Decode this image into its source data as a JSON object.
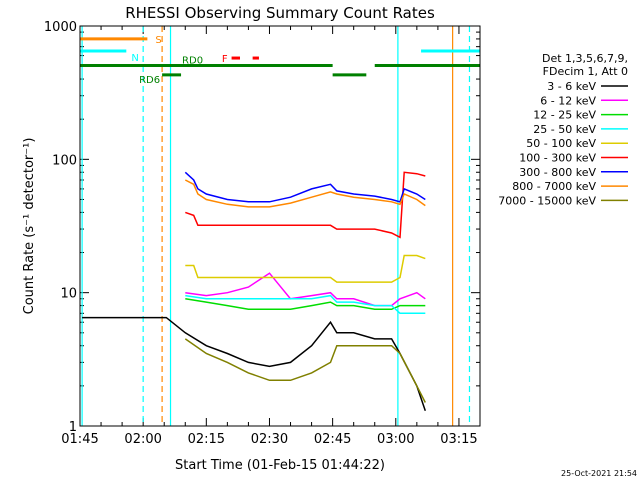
{
  "chart_data": {
    "type": "line",
    "title": "RHESSI Observing Summary Count Rates",
    "xlabel": "Start Time (01-Feb-15 01:44:22)",
    "ylabel": "Count Rate (s⁻¹ detector⁻¹)",
    "y_scale": "log",
    "ylim": [
      1,
      1000
    ],
    "xlim": [
      105,
      200
    ],
    "x_unit": "minutes after 00:00 UT, 01-Feb-15",
    "x_ticks": [
      {
        "value": 105,
        "label": "01:45"
      },
      {
        "value": 120,
        "label": "02:00"
      },
      {
        "value": 135,
        "label": "02:15"
      },
      {
        "value": 150,
        "label": "02:30"
      },
      {
        "value": 165,
        "label": "02:45"
      },
      {
        "value": 180,
        "label": "03:00"
      },
      {
        "value": 195,
        "label": "03:15"
      }
    ],
    "y_ticks": [
      {
        "value": 1,
        "label": "1"
      },
      {
        "value": 10,
        "label": "10"
      },
      {
        "value": 100,
        "label": "100"
      },
      {
        "value": 1000,
        "label": "1000"
      }
    ],
    "legend_header": [
      "Det 1,3,5,6,7,9,",
      "FDecim 1, Att 0"
    ],
    "legend_position": "right",
    "timestamp": "25-Oct-2021 21:54",
    "series": [
      {
        "name": "3 - 6 keV",
        "color": "#000000",
        "x": [
          105.5,
          107.5,
          108.5,
          112.5,
          115,
          118,
          122,
          125.5,
          130,
          135,
          140,
          145,
          150,
          155,
          160,
          164.5,
          166,
          170,
          175,
          179,
          181,
          185,
          187
        ],
        "y": [
          6.5,
          6.5,
          6.5,
          6.5,
          6.5,
          6.5,
          6.5,
          6.5,
          5,
          4,
          3.5,
          3,
          2.8,
          3,
          4,
          6,
          5,
          5,
          4.5,
          4.5,
          3.5,
          2,
          1.3
        ]
      },
      {
        "name": "6 - 12 keV",
        "color": "#ff00ff",
        "x": [
          130,
          135,
          140,
          145,
          150,
          155,
          160,
          164.5,
          166,
          170,
          175,
          179,
          181,
          185,
          187
        ],
        "y": [
          10,
          9.5,
          10,
          11,
          14,
          9,
          9.5,
          10,
          9,
          9,
          8,
          8,
          9,
          10,
          9
        ]
      },
      {
        "name": "12 - 25 keV",
        "color": "#00dd00",
        "x": [
          130,
          135,
          140,
          145,
          150,
          155,
          160,
          164.5,
          166,
          170,
          175,
          179,
          181,
          185,
          187
        ],
        "y": [
          9,
          8.5,
          8,
          7.5,
          7.5,
          7.5,
          8,
          8.5,
          8,
          8,
          7.5,
          7.5,
          8,
          8,
          8
        ]
      },
      {
        "name": "25 - 50 keV",
        "color": "#00ffff",
        "x": [
          130,
          135,
          140,
          145,
          150,
          155,
          160,
          164.5,
          166,
          170,
          175,
          179,
          181,
          185,
          187
        ],
        "y": [
          9.5,
          9,
          9,
          9,
          9,
          9,
          9,
          9.5,
          8.5,
          8.5,
          8,
          8,
          7,
          7,
          7
        ]
      },
      {
        "name": "50 - 100 keV",
        "color": "#ddcc00",
        "x": [
          130,
          132,
          133,
          135,
          140,
          145,
          150,
          155,
          160,
          164.5,
          166,
          170,
          175,
          179,
          181,
          182,
          185,
          187
        ],
        "y": [
          16,
          16,
          13,
          13,
          13,
          13,
          13,
          13,
          13,
          13,
          12,
          12,
          12,
          12,
          13,
          19,
          19,
          18
        ]
      },
      {
        "name": "100 - 300 keV",
        "color": "#ff0000",
        "x": [
          130,
          132,
          133,
          135,
          140,
          145,
          150,
          155,
          160,
          164.5,
          166,
          170,
          175,
          179,
          181,
          182,
          185,
          187
        ],
        "y": [
          40,
          38,
          32,
          32,
          32,
          32,
          32,
          32,
          32,
          32,
          30,
          30,
          30,
          28,
          26,
          80,
          78,
          75
        ]
      },
      {
        "name": "300 - 800 keV",
        "color": "#0000ff",
        "x": [
          130,
          132,
          133,
          135,
          140,
          145,
          150,
          155,
          160,
          164.5,
          166,
          170,
          175,
          179,
          181,
          182,
          185,
          187
        ],
        "y": [
          80,
          70,
          60,
          55,
          50,
          48,
          48,
          52,
          60,
          65,
          58,
          55,
          53,
          50,
          48,
          60,
          55,
          50
        ]
      },
      {
        "name": "800 - 7000 keV",
        "color": "#ff8800",
        "x": [
          130,
          132,
          133,
          135,
          140,
          145,
          150,
          155,
          160,
          164.5,
          166,
          170,
          175,
          179,
          181,
          182,
          185,
          187
        ],
        "y": [
          70,
          65,
          55,
          50,
          46,
          44,
          44,
          47,
          52,
          57,
          55,
          52,
          50,
          48,
          46,
          55,
          50,
          45
        ]
      },
      {
        "name": "7000 - 15000 keV",
        "color": "#808000",
        "x": [
          130,
          135,
          140,
          145,
          150,
          155,
          160,
          164.5,
          166,
          170,
          175,
          179,
          181,
          185,
          187
        ],
        "y": [
          4.5,
          3.5,
          3,
          2.5,
          2.2,
          2.2,
          2.5,
          3,
          4,
          4,
          4,
          4,
          3.5,
          2,
          1.5
        ]
      }
    ],
    "annotations": [
      {
        "label": "S",
        "color": "#ff8800",
        "y": 800,
        "segments": [
          [
            105,
            121
          ]
        ]
      },
      {
        "label": "N",
        "color": "#00ffff",
        "y": 650,
        "segments": [
          [
            105,
            116
          ],
          [
            186,
            200
          ]
        ]
      },
      {
        "label": "F",
        "color": "#ff0000",
        "y": 575,
        "segments": [
          [
            141,
            143
          ],
          [
            146,
            147.5
          ]
        ]
      },
      {
        "label": "RD0",
        "color": "#008000",
        "y": 505,
        "segments": [
          [
            105,
            165
          ],
          [
            175,
            200
          ]
        ]
      },
      {
        "label": "RD6",
        "color": "#008000",
        "y": 430,
        "segments": [
          [
            124.5,
            129
          ],
          [
            165,
            173
          ]
        ]
      }
    ],
    "vertical_lines": [
      {
        "x": 105.5,
        "color": "#00ffff",
        "style": "solid"
      },
      {
        "x": 120,
        "color": "#00ffff",
        "style": "dashed"
      },
      {
        "x": 124.5,
        "color": "#ff8800",
        "style": "dashed"
      },
      {
        "x": 126.5,
        "color": "#00ffff",
        "style": "solid"
      },
      {
        "x": 180.5,
        "color": "#00ffff",
        "style": "solid"
      },
      {
        "x": 193.5,
        "color": "#ff8800",
        "style": "solid"
      },
      {
        "x": 197.5,
        "color": "#00ffff",
        "style": "dashed"
      }
    ]
  }
}
